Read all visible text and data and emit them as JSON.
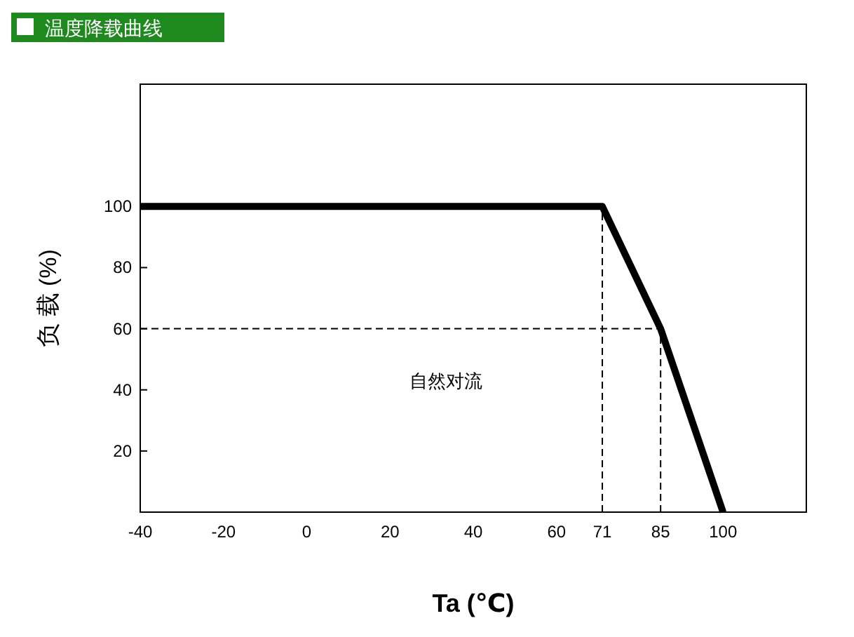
{
  "chart_data": {
    "type": "line",
    "title": "温度降载曲线",
    "xlabel": "Ta (℃)",
    "ylabel": "负 载 (%)",
    "annotations": [
      "自然对流"
    ],
    "xlim": [
      -40,
      120
    ],
    "xticks": [
      -40,
      -20,
      0,
      20,
      40,
      60,
      71,
      85,
      100
    ],
    "ylim": [
      0,
      140
    ],
    "yticks": [
      20,
      40,
      60,
      80,
      100
    ],
    "grid": false,
    "marker": "none",
    "series": [
      {
        "color": "#000000",
        "x": [
          -40,
          71,
          85,
          100
        ],
        "values": [
          100,
          100,
          60,
          0
        ],
        "line_style": "solid"
      },
      {
        "color": "#000000",
        "x": [
          71,
          71
        ],
        "values": [
          0,
          100
        ],
        "line_style": "dashed"
      },
      {
        "color": "#000000",
        "x": [
          85,
          85
        ],
        "values": [
          0,
          60
        ],
        "line_style": "dashed"
      },
      {
        "color": "#000000",
        "x": [
          -40,
          85
        ],
        "values": [
          60,
          60
        ],
        "line_style": "dashed"
      }
    ]
  }
}
